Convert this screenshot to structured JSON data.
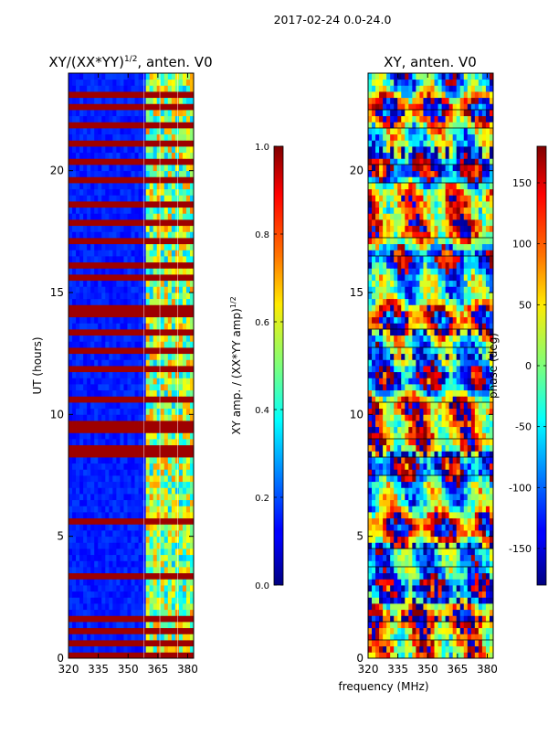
{
  "suptitle": "2017-02-24 0.0-24.0",
  "shared_xlabel": "frequency (MHz)",
  "chart_data": [
    {
      "type": "heatmap",
      "title": "XY/(XX*YY)^{1/2}, anten. V0",
      "title_main": "XY/(XX*YY)",
      "title_sup": "1/2",
      "title_tail": ", anten. V0",
      "xlabel": "frequency (MHz)",
      "ylabel": "UT (hours)",
      "xlim": [
        320,
        383
      ],
      "ylim": [
        0,
        24
      ],
      "xticks": [
        320,
        335,
        350,
        365,
        380
      ],
      "yticks": [
        0,
        5,
        10,
        15,
        20
      ],
      "colormap": "jet",
      "colorbar": {
        "label_main": "XY amp. / (XX*YY amp)",
        "label_sup": "1/2",
        "range": [
          0.0,
          1.0
        ],
        "ticks": [
          "0.0",
          "0.2",
          "0.4",
          "0.6",
          "0.8",
          "1.0"
        ],
        "tick_values": [
          0.0,
          0.2,
          0.4,
          0.6,
          0.8,
          1.0
        ]
      },
      "description": "Normalized cross-correlation amplitude mostly low (~0.1) below 358 MHz, higher (0.3-0.7) above 358 MHz; horizontal flagged bands saturated at 1.0.",
      "flagged_rows_ut": [
        0.1,
        0.5,
        1.0,
        1.4,
        3.3,
        5.5,
        8.2,
        8.6,
        9.2,
        9.6,
        10.4,
        11.8,
        12.6,
        13.2,
        13.9,
        14.2,
        15.4,
        16.1,
        17.0,
        17.8,
        18.6,
        19.4,
        20.2,
        20.9,
        21.8,
        22.4,
        22.9
      ],
      "band_edges_mhz": [
        358,
        366,
        375
      ]
    },
    {
      "type": "heatmap",
      "title": "XY, anten. V0",
      "xlabel": "frequency (MHz)",
      "ylabel": "",
      "xlim": [
        320,
        383
      ],
      "ylim": [
        0,
        24
      ],
      "xticks": [
        320,
        335,
        350,
        365,
        380
      ],
      "yticks": [
        0,
        5,
        10,
        15,
        20
      ],
      "colormap": "jet",
      "colorbar": {
        "label_main": "phase (deg)",
        "range": [
          -180,
          180
        ],
        "ticks": [
          "-150",
          "-100",
          "-50",
          "0",
          "50",
          "100",
          "150"
        ],
        "tick_values": [
          -150,
          -100,
          -50,
          0,
          50,
          100,
          150
        ]
      },
      "description": "Cross-correlation phase in degrees, wrapping between -180 and 180 with time-variable structure and horizontal flagged rows."
    }
  ]
}
